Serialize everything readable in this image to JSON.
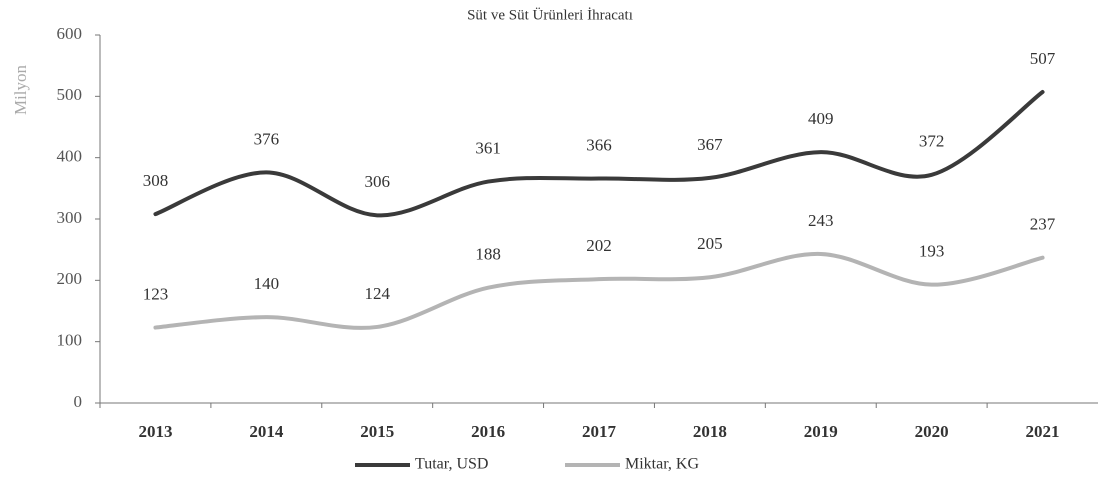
{
  "chart_data": {
    "type": "line",
    "title": "Süt ve Süt Ürünleri İhracatı",
    "y_label": "Milyon",
    "categories": [
      "2013",
      "2014",
      "2015",
      "2016",
      "2017",
      "2018",
      "2019",
      "2020",
      "2021"
    ],
    "series": [
      {
        "name": "Tutar, USD",
        "color": "#3a3a3a",
        "values": [
          308,
          376,
          306,
          361,
          366,
          367,
          409,
          372,
          507
        ]
      },
      {
        "name": "Miktar, KG",
        "color": "#b4b4b4",
        "values": [
          123,
          140,
          124,
          188,
          202,
          205,
          243,
          193,
          237
        ]
      }
    ],
    "ylim": [
      0,
      600
    ],
    "yticks": [
      0,
      100,
      200,
      300,
      400,
      500,
      600
    ],
    "grid": false,
    "legend": "bottom",
    "smooth": true
  }
}
